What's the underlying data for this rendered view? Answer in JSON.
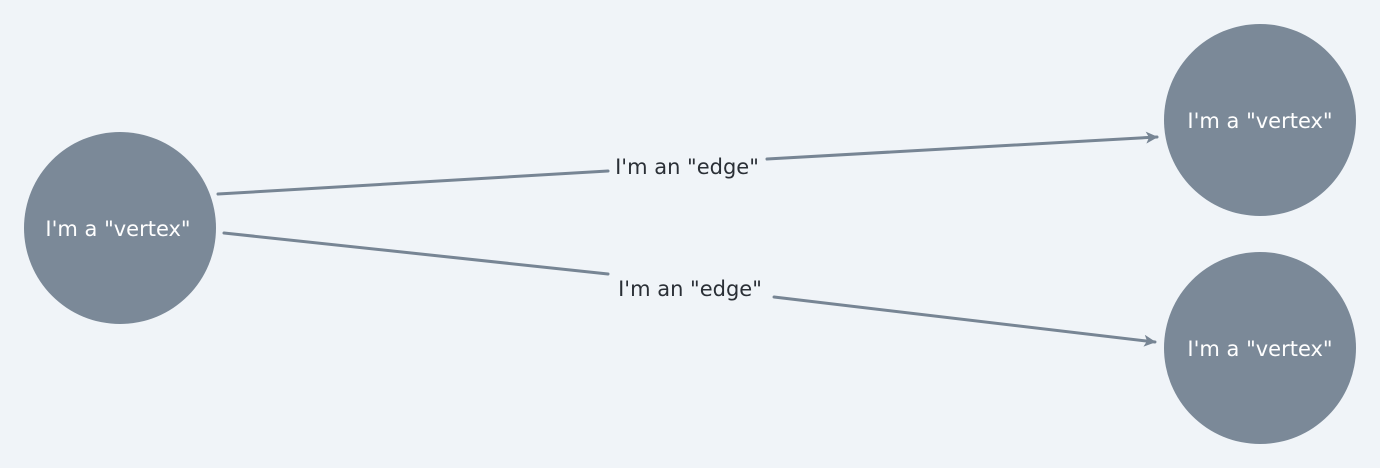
{
  "diagram": {
    "vertices": [
      {
        "id": "vertex-left",
        "label": "I'm a \"vertex\""
      },
      {
        "id": "vertex-top-right",
        "label": "I'm a \"vertex\""
      },
      {
        "id": "vertex-bottom-right",
        "label": "I'm a \"vertex\""
      }
    ],
    "edges": [
      {
        "from": "vertex-left",
        "to": "vertex-top-right",
        "label": "I'm an \"edge\""
      },
      {
        "from": "vertex-left",
        "to": "vertex-bottom-right",
        "label": "I'm an \"edge\""
      }
    ],
    "colors": {
      "background": "#f0f4f8",
      "vertex_fill": "#7b8998",
      "edge_stroke": "#778594",
      "edge_label": "#2a2f36",
      "vertex_label": "#ffffff"
    }
  }
}
